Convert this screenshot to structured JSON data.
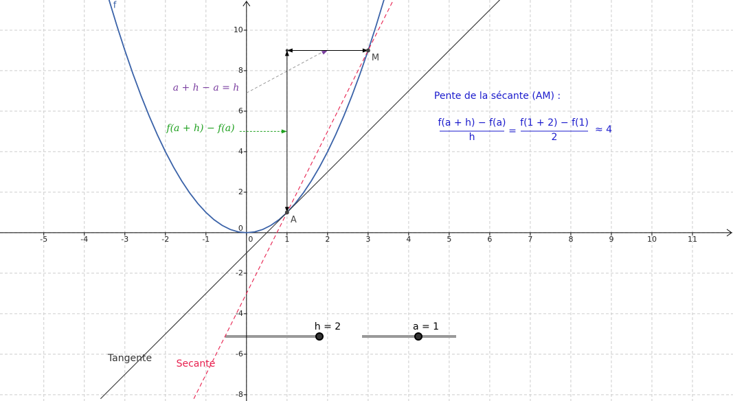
{
  "chart_data": {
    "type": "line",
    "xlim": [
      -6.08,
      12
    ],
    "ylim": [
      -8.31,
      11.49
    ],
    "xticks": [
      -5,
      -4,
      -3,
      -2,
      -1,
      0,
      1,
      2,
      3,
      4,
      5,
      6,
      7,
      8,
      9,
      10,
      11
    ],
    "yticks": [
      -8,
      -6,
      -4,
      -2,
      0,
      2,
      4,
      6,
      8,
      10
    ],
    "grid": true,
    "series": [
      {
        "name": "f",
        "color": "#3a62a8",
        "x": [
          -3.4,
          -3.2,
          -3.0,
          -2.8,
          -2.6,
          -2.4,
          -2.2,
          -2.0,
          -1.8,
          -1.6,
          -1.4,
          -1.2,
          -1.0,
          -0.8,
          -0.6,
          -0.4,
          -0.2,
          0,
          0.2,
          0.4,
          0.6,
          0.8,
          1.0,
          1.2,
          1.4,
          1.6,
          1.8,
          2.0,
          2.2,
          2.4,
          2.6,
          2.8,
          3.0,
          3.2,
          3.4
        ],
        "values": [
          11.56,
          10.24,
          9,
          7.84,
          6.76,
          5.76,
          4.84,
          4,
          3.24,
          2.56,
          1.96,
          1.44,
          1,
          0.64,
          0.36,
          0.16,
          0.04,
          0,
          0.04,
          0.16,
          0.36,
          0.64,
          1,
          1.44,
          1.96,
          2.56,
          3.24,
          4,
          4.84,
          5.76,
          6.76,
          7.84,
          9,
          10.24,
          11.56
        ]
      },
      {
        "name": "Tangente",
        "color": "#333333",
        "x": [
          -3.6,
          6.25
        ],
        "values": [
          -8.2,
          11.5
        ]
      },
      {
        "name": "Secante",
        "color": "#e8204e",
        "dash": true,
        "x": [
          -1.3,
          3.6
        ],
        "values": [
          -8.2,
          11.4
        ]
      }
    ],
    "points": [
      {
        "name": "A",
        "x": 1,
        "y": 1
      },
      {
        "name": "M",
        "x": 3,
        "y": 9
      }
    ],
    "annotations": [
      {
        "text": "a + h − a = h",
        "color": "#7b3fa0"
      },
      {
        "text": "f(a + h) − f(a)",
        "color": "#1fa01f"
      }
    ],
    "sliders": [
      {
        "label": "h = 2"
      },
      {
        "label": "a = 1"
      }
    ],
    "slope_title": "Pente de la sécante (AM) :",
    "formula": {
      "num1": "f(a + h) − f(a)",
      "den1": "h",
      "eq": "=",
      "num2": "f(1 + 2) − f(1)",
      "den2": "2",
      "approx": "≈ 4"
    }
  }
}
